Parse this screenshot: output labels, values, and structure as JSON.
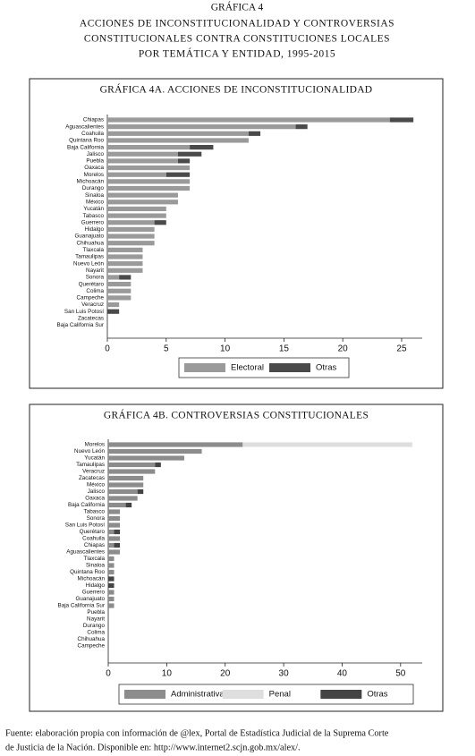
{
  "header": {
    "title": "GRÁFICA 4",
    "lines": [
      "ACCIONES DE INCONSTITUCIONALIDAD Y CONTROVERSIAS",
      "CONSTITUCIONALES CONTRA CONSTITUCIONES LOCALES",
      "POR TEMÁTICA Y ENTIDAD, 1995-2015"
    ]
  },
  "chart_data": [
    {
      "type": "bar",
      "orientation": "horizontal",
      "stacked": true,
      "title": "GRÁFICA 4A. ACCIONES DE INCONSTITUCIONALIDAD",
      "categories": [
        "Chiapas",
        "Aguascalientes",
        "Coahuila",
        "Quintana Roo",
        "Baja California",
        "Jalisco",
        "Puebla",
        "Oaxaca",
        "Morelos",
        "Michoacán",
        "Durango",
        "Sinaloa",
        "México",
        "Yucatán",
        "Tabasco",
        "Guerrero",
        "Hidalgo",
        "Guanajuato",
        "Chihuahua",
        "Tlaxcala",
        "Tamaulipas",
        "Nuevo León",
        "Nayarit",
        "Sonora",
        "Querétaro",
        "Colima",
        "Campeche",
        "Veracruz",
        "San Luis Potosí",
        "Zacatecas",
        "Baja California Sur"
      ],
      "series": [
        {
          "name": "Electoral",
          "color": "#9a9a9a",
          "values": [
            24,
            16,
            12,
            12,
            7,
            6,
            6,
            7,
            5,
            7,
            7,
            6,
            6,
            5,
            5,
            4,
            4,
            4,
            4,
            3,
            3,
            3,
            3,
            1,
            2,
            2,
            2,
            1,
            0,
            0,
            0
          ]
        },
        {
          "name": "Otras",
          "color": "#4a4a4a",
          "values": [
            2,
            1,
            1,
            0,
            2,
            2,
            1,
            0,
            2,
            0,
            0,
            0,
            0,
            0,
            0,
            1,
            0,
            0,
            0,
            0,
            0,
            0,
            0,
            1,
            0,
            0,
            0,
            0,
            1,
            0,
            0
          ]
        }
      ],
      "xlim": [
        0,
        26.75
      ],
      "xticks": [
        0,
        5,
        10,
        15,
        20,
        25
      ]
    },
    {
      "type": "bar",
      "orientation": "horizontal",
      "stacked": true,
      "title": "GRÁFICA 4B. CONTROVERSIAS CONSTITUCIONALES",
      "categories": [
        "Morelos",
        "Nuevo León",
        "Yucatán",
        "Tamaulipas",
        "Veracruz",
        "Zacatecas",
        "México",
        "Jalisco",
        "Oaxaca",
        "Baja California",
        "Tabasco",
        "Sonora",
        "San Luis Potosí",
        "Querétaro",
        "Coahuila",
        "Chiapas",
        "Aguascalientes",
        "Tlaxcala",
        "Sinaloa",
        "Quintana Roo",
        "Michoacán",
        "Hidalgo",
        "Guerrero",
        "Guanajuato",
        "Baja California Sur",
        "Puebla",
        "Nayarit",
        "Durango",
        "Colima",
        "Chihuahua",
        "Campeche"
      ],
      "series": [
        {
          "name": "Administrativa / fiscal",
          "color": "#8c8c8c",
          "values": [
            23,
            16,
            13,
            8,
            8,
            6,
            6,
            5,
            5,
            3,
            2,
            2,
            2,
            1,
            2,
            1,
            2,
            1,
            1,
            1,
            0,
            0,
            1,
            1,
            1,
            0,
            0,
            0,
            0,
            0,
            0
          ]
        },
        {
          "name": "Penal",
          "color": "#dedede",
          "values": [
            29,
            0,
            0,
            0,
            0,
            0,
            0,
            0,
            0,
            0,
            0,
            0,
            0,
            0,
            0,
            0,
            0,
            0,
            0,
            0,
            0,
            0,
            0,
            0,
            0,
            0,
            0,
            0,
            0,
            0,
            0
          ]
        },
        {
          "name": "Otras",
          "color": "#444444",
          "values": [
            0,
            0,
            0,
            1,
            0,
            0,
            0,
            1,
            0,
            1,
            0,
            0,
            0,
            1,
            0,
            1,
            0,
            0,
            0,
            0,
            1,
            1,
            0,
            0,
            0,
            0,
            0,
            0,
            0,
            0,
            0
          ]
        }
      ],
      "xlim": [
        0,
        53.7
      ],
      "xticks": [
        0,
        10,
        20,
        30,
        40,
        50
      ]
    }
  ],
  "footer": [
    "Fuente: elaboración propia con información de @lex, Portal de Estadística Judicial de la Suprema Corte",
    "de Justicia de la Nación. Disponible en: http://www.internet2.scjn.gob.mx/alex/."
  ]
}
